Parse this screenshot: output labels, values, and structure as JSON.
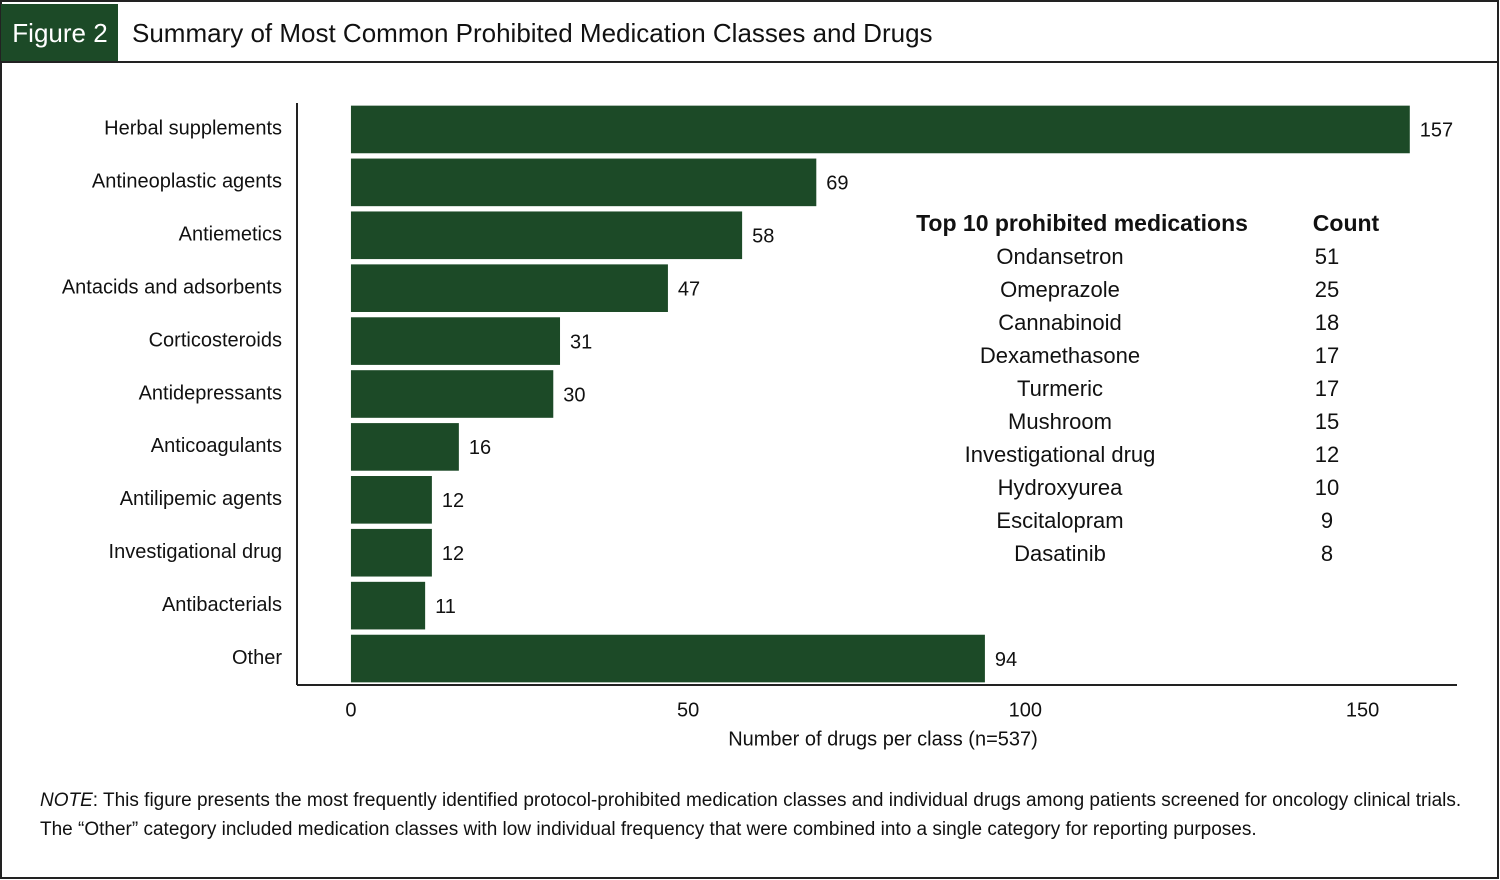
{
  "chart_data": {
    "type": "bar",
    "orientation": "horizontal",
    "figure_label": "Figure 2",
    "title": "Summary of Most Common Prohibited Medication Classes and Drugs",
    "categories": [
      "Herbal supplements",
      "Antineoplastic agents",
      "Antiemetics",
      "Antacids and adsorbents",
      "Corticosteroids",
      "Antidepressants",
      "Anticoagulants",
      "Antilipemic agents",
      "Investigational drug",
      "Antibacterials",
      "Other"
    ],
    "values": [
      157,
      69,
      58,
      47,
      31,
      30,
      16,
      12,
      12,
      11,
      94
    ],
    "color": "#1c4a27",
    "xlim": [
      -8,
      164
    ],
    "xticks": [
      0,
      50,
      100,
      150
    ],
    "xlabel": "Number of drugs per class (n=537)",
    "table": {
      "columns": [
        "Top 10 prohibited medications",
        "Count"
      ],
      "rows": [
        [
          "Ondansetron",
          51
        ],
        [
          "Omeprazole",
          25
        ],
        [
          "Cannabinoid",
          18
        ],
        [
          "Dexamethasone",
          17
        ],
        [
          "Turmeric",
          17
        ],
        [
          "Mushroom",
          15
        ],
        [
          "Investigational drug",
          12
        ],
        [
          "Hydroxyurea",
          10
        ],
        [
          "Escitalopram",
          9
        ],
        [
          "Dasatinib",
          8
        ]
      ]
    },
    "note_label": "NOTE",
    "note": ": This figure presents the most frequently identified protocol-prohibited medication classes and individual drugs among patients screened for oncology clinical trials. The “Other” category included medication classes with low individual frequency that were combined into a single category for reporting purposes."
  }
}
